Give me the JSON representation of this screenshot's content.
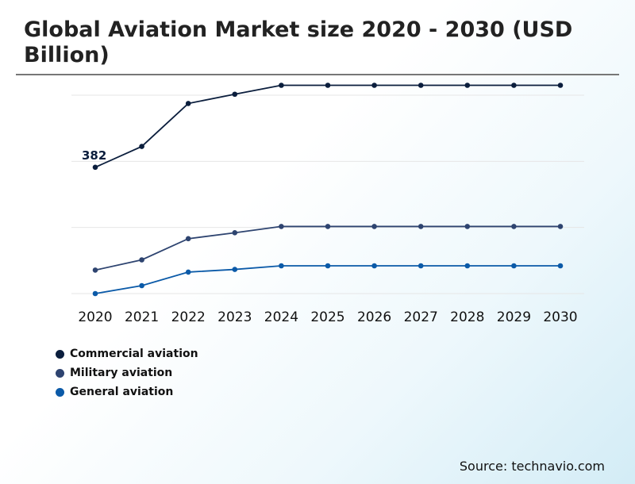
{
  "title": "Global Aviation Market size 2020 - 2030 (USD Billion)",
  "source": "Source: technavio.com",
  "chart_data": {
    "type": "line",
    "x": [
      "2020",
      "2021",
      "2022",
      "2023",
      "2024",
      "2025",
      "2026",
      "2027",
      "2028",
      "2029",
      "2030"
    ],
    "ylim": [
      0,
      600
    ],
    "grid": true,
    "legend_position": "bottom-left",
    "series": [
      {
        "name": "Commercial aviation",
        "color": "#0b1e3d",
        "values": [
          382,
          445,
          575,
          603,
          630,
          630,
          630,
          630,
          630,
          630,
          630
        ],
        "data_labels": {
          "0": "382"
        }
      },
      {
        "name": "Military aviation",
        "color": "#2e4470",
        "values": [
          71,
          102,
          166,
          184,
          203,
          203,
          203,
          203,
          203,
          203,
          203
        ]
      },
      {
        "name": "General aviation",
        "color": "#0b5aa8",
        "values": [
          0,
          24,
          65,
          73,
          84,
          84,
          84,
          84,
          84,
          84,
          84
        ]
      }
    ]
  }
}
